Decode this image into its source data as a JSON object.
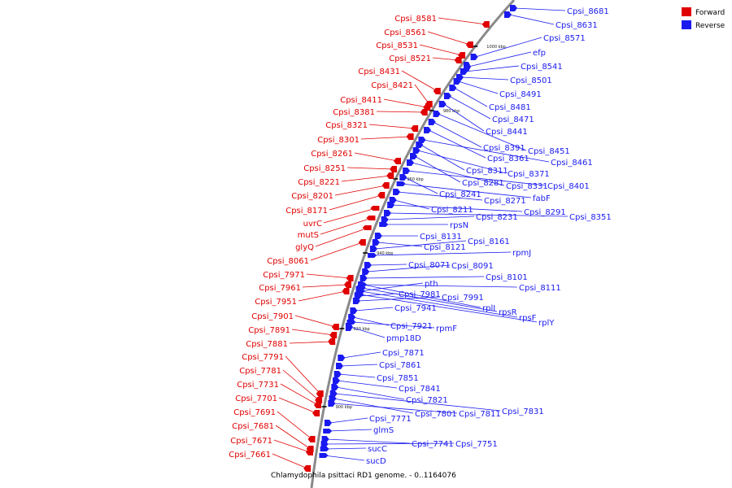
{
  "title": "Chlamydophila psittaci RD1 genome. - 0..1164076",
  "legend": [
    {
      "label": "Forward",
      "color": "#e00000"
    },
    {
      "label": "Reverse",
      "color": "#1a1af0"
    }
  ],
  "colors": {
    "forward": "#e00000",
    "reverse": "#1a1af0",
    "backbone": "#8a8a8a"
  },
  "ticks": [
    "1000 kbp",
    "980 kbp",
    "960 kbp",
    "940 kbp",
    "920 kbp",
    "900 kbp"
  ],
  "forward_labels": [
    "Cpsi_8581",
    "Cpsi_8561",
    "Cpsi_8531",
    "Cpsi_8521",
    "Cpsi_8431",
    "Cpsi_8421",
    "Cpsi_8411",
    "Cpsi_8381",
    "Cpsi_8321",
    "Cpsi_8301",
    "Cpsi_8261",
    "Cpsi_8251",
    "Cpsi_8221",
    "Cpsi_8201",
    "Cpsi_8171",
    "uvrC",
    "mutS",
    "glyQ",
    "Cpsi_8061",
    "Cpsi_7971",
    "Cpsi_7961",
    "Cpsi_7951",
    "Cpsi_7901",
    "Cpsi_7891",
    "Cpsi_7881",
    "Cpsi_7791",
    "Cpsi_7781",
    "Cpsi_7731",
    "Cpsi_7701",
    "Cpsi_7691",
    "Cpsi_7681",
    "Cpsi_7671",
    "Cpsi_7661"
  ],
  "reverse_labels": [
    "Cpsi_8681",
    "Cpsi_8631",
    "Cpsi_8571",
    "efp",
    "Cpsi_8541",
    "Cpsi_8501",
    "Cpsi_8491",
    "Cpsi_8481",
    "Cpsi_8471",
    "Cpsi_8441",
    "Cpsi_8451",
    "Cpsi_8391",
    "Cpsi_8361",
    "Cpsi_8461",
    "Cpsi_8311",
    "Cpsi_8371",
    "Cpsi_8281",
    "Cpsi_8331",
    "Cpsi_8401",
    "Cpsi_8241",
    "fabF",
    "Cpsi_8271",
    "Cpsi_8211",
    "Cpsi_8291",
    "Cpsi_8351",
    "Cpsi_8231",
    "rpsN",
    "Cpsi_8131",
    "Cpsi_8121",
    "Cpsi_8161",
    "rpmJ",
    "Cpsi_8071",
    "Cpsi_8091",
    "Cpsi_8101",
    "Cpsi_8111",
    "pth",
    "Cpsi_7981",
    "Cpsi_7991",
    "Cpsi_7941",
    "rplI",
    "rpsR",
    "rpsF",
    "rplY",
    "Cpsi_7921",
    "rpmF",
    "pmp18D",
    "Cpsi_7871",
    "Cpsi_7861",
    "Cpsi_7851",
    "Cpsi_7841",
    "Cpsi_7821",
    "Cpsi_7831",
    "Cpsi_7801",
    "Cpsi_7811",
    "Cpsi_7771",
    "glmS",
    "Cpsi_7741",
    "Cpsi_7751",
    "sucC",
    "sucD"
  ]
}
